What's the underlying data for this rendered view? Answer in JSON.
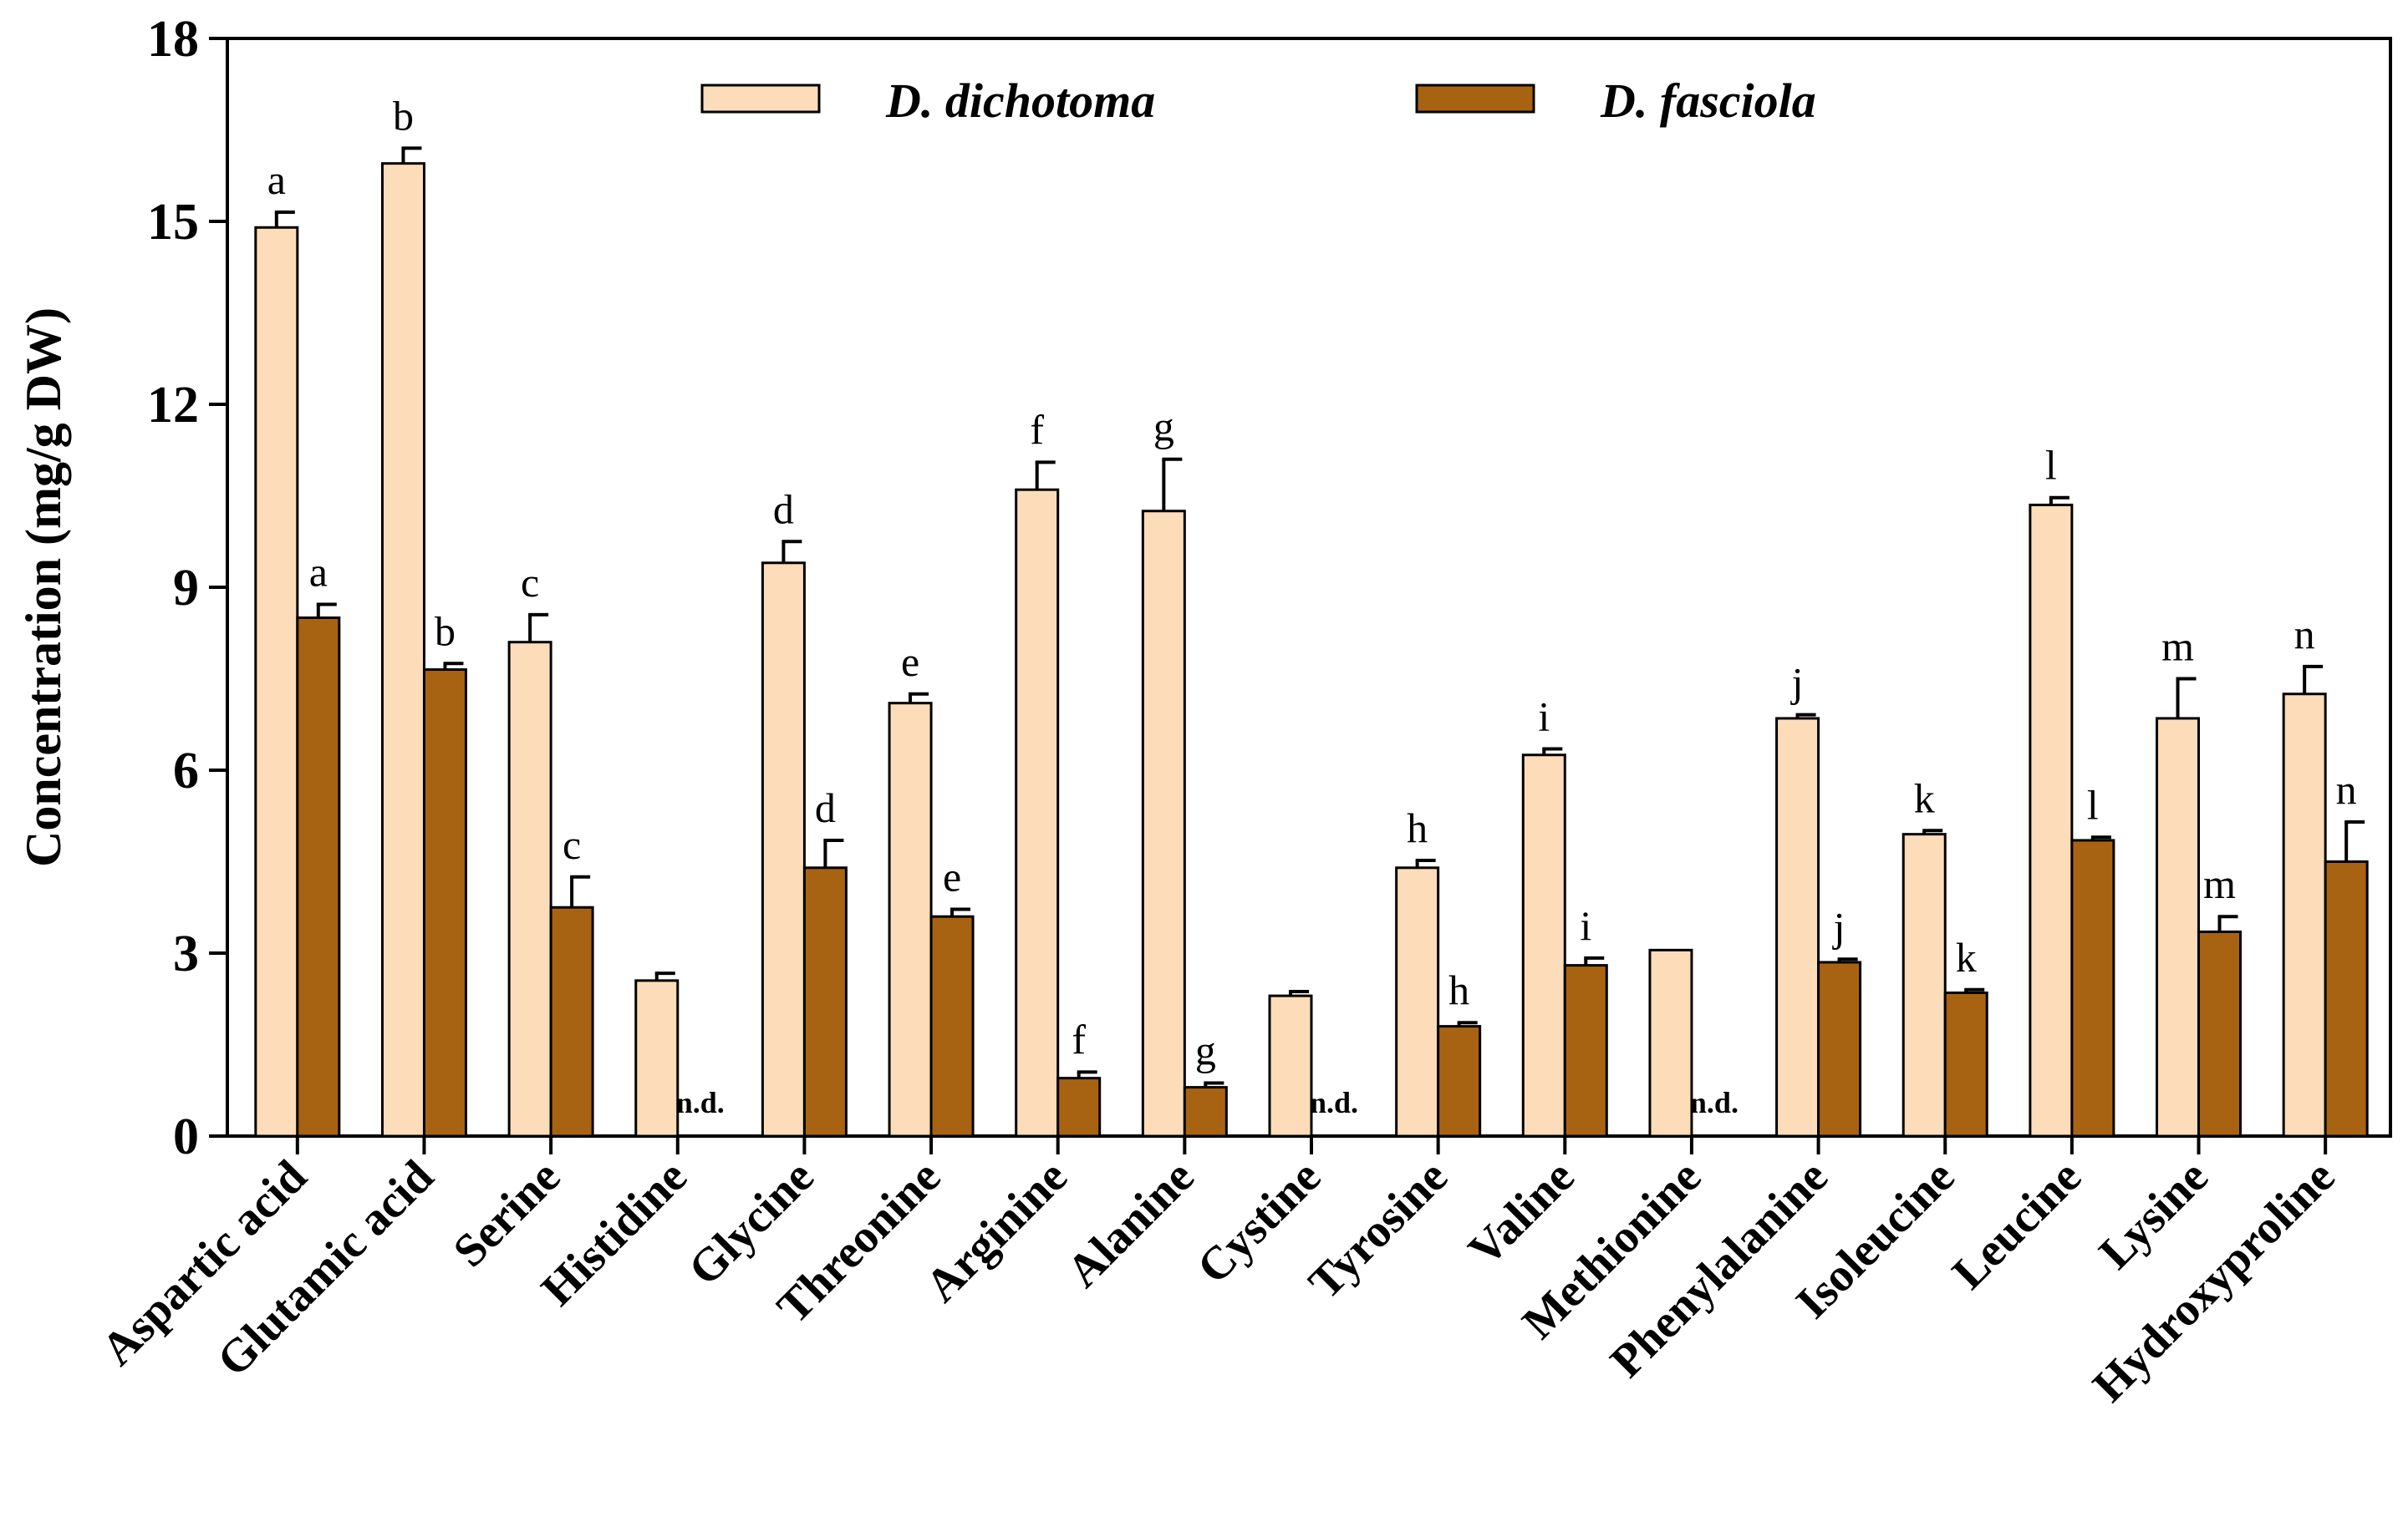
{
  "chart_data": {
    "type": "bar",
    "title": "",
    "xlabel": "",
    "ylabel": "Concentration (mg/g DW)",
    "ylim": [
      0,
      18
    ],
    "yticks": [
      "0",
      "3",
      "6",
      "9",
      "12",
      "15",
      "18"
    ],
    "legend_position": "top-center",
    "categories": [
      "Aspartic acid",
      "Glutamic acid",
      "Serine",
      "Histidine",
      "Glycine",
      "Threonine",
      "Arginine",
      "Alanine",
      "Cystine",
      "Tyrosine",
      "Valine",
      "Methionine",
      "Phenylalanine",
      "Isoleucine",
      "Leucine",
      "Lysine",
      "Hydroxyproline"
    ],
    "series": [
      {
        "name": "D. dichotoma",
        "color": "#FDDDB9",
        "values": [
          14.9,
          15.95,
          8.1,
          2.55,
          9.4,
          7.1,
          10.6,
          10.25,
          2.3,
          4.4,
          6.25,
          3.05,
          6.85,
          4.95,
          10.35,
          6.85,
          7.25
        ],
        "errors": [
          0.25,
          0.25,
          0.45,
          0.12,
          0.35,
          0.15,
          0.45,
          0.85,
          0.07,
          0.12,
          0.1,
          0.0,
          0.06,
          0.06,
          0.12,
          0.65,
          0.45
        ],
        "letters": [
          "a",
          "b",
          "c",
          "",
          "d",
          "e",
          "f",
          "g",
          "",
          "h",
          "i",
          "",
          "j",
          "k",
          "l",
          "m",
          "n"
        ]
      },
      {
        "name": "D. fasciola",
        "color": "#A86312",
        "values": [
          8.5,
          7.65,
          3.75,
          null,
          4.4,
          3.6,
          0.95,
          0.8,
          null,
          1.8,
          2.8,
          null,
          2.85,
          2.35,
          4.85,
          3.35,
          4.5
        ],
        "errors": [
          0.22,
          0.1,
          0.5,
          null,
          0.45,
          0.12,
          0.1,
          0.07,
          null,
          0.06,
          0.12,
          null,
          0.05,
          0.05,
          0.05,
          0.25,
          0.65
        ],
        "letters": [
          "a",
          "b",
          "c",
          "n.d.",
          "d",
          "e",
          "f",
          "g",
          "n.d.",
          "h",
          "i",
          "n.d.",
          "j",
          "k",
          "l",
          "m",
          "n"
        ]
      }
    ]
  }
}
